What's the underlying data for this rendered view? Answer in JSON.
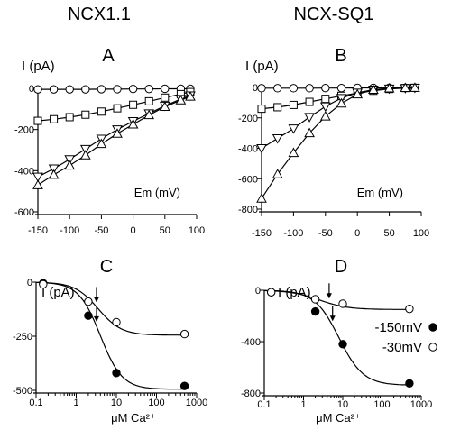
{
  "column_titles": [
    "NCX1.1",
    "NCX-SQ1"
  ],
  "chart_data": [
    {
      "panel": "A",
      "type": "line",
      "ylabel": "I (pA)",
      "xlabel": "Em (mV)",
      "xlim": [
        -150,
        100
      ],
      "ylim": [
        -600,
        0
      ],
      "xticks": [
        "-150",
        "-100",
        "-50",
        "0",
        "50",
        "100"
      ],
      "xtick_values": [
        -150,
        -100,
        -50,
        0,
        50,
        100
      ],
      "yticks": [
        "0",
        "-200",
        "-400",
        "-600"
      ],
      "ytick_values": [
        0,
        -200,
        -400,
        -600
      ],
      "series": [
        {
          "marker": "circle",
          "x": [
            -150,
            -125,
            -100,
            -75,
            -50,
            -25,
            0,
            25,
            50,
            75,
            90
          ],
          "y": [
            -5,
            -5,
            -5,
            -5,
            -4,
            -4,
            -3,
            -3,
            -2,
            -2,
            -2
          ]
        },
        {
          "marker": "square",
          "x": [
            -150,
            -125,
            -100,
            -75,
            -50,
            -25,
            0,
            25,
            50,
            75,
            90
          ],
          "y": [
            -158,
            -150,
            -140,
            -128,
            -113,
            -97,
            -80,
            -63,
            -45,
            -28,
            -18
          ]
        },
        {
          "marker": "triangle-down",
          "x": [
            -150,
            -125,
            -100,
            -75,
            -50,
            -25,
            0,
            25,
            50,
            75,
            90
          ],
          "y": [
            -430,
            -390,
            -345,
            -295,
            -245,
            -200,
            -160,
            -122,
            -85,
            -52,
            -35
          ]
        },
        {
          "marker": "triangle-up",
          "x": [
            -150,
            -125,
            -100,
            -75,
            -50,
            -25,
            0,
            25,
            50,
            75,
            90
          ],
          "y": [
            -470,
            -420,
            -375,
            -325,
            -270,
            -220,
            -175,
            -130,
            -90,
            -58,
            -40
          ]
        }
      ]
    },
    {
      "panel": "B",
      "type": "line",
      "ylabel": "I (pA)",
      "xlabel": "Em (mV)",
      "xlim": [
        -150,
        100
      ],
      "ylim": [
        -800,
        0
      ],
      "xticks": [
        "-150",
        "-100",
        "-50",
        "0",
        "50",
        "100"
      ],
      "xtick_values": [
        -150,
        -100,
        -50,
        0,
        50,
        100
      ],
      "yticks": [
        "0",
        "-200",
        "-400",
        "-600",
        "-800"
      ],
      "ytick_values": [
        0,
        -200,
        -400,
        -600,
        -800
      ],
      "series": [
        {
          "marker": "circle",
          "x": [
            -150,
            -125,
            -100,
            -75,
            -50,
            -25,
            0,
            25,
            50,
            75,
            90
          ],
          "y": [
            -5,
            -5,
            -5,
            -5,
            -4,
            -4,
            -3,
            -3,
            -2,
            -2,
            -2
          ]
        },
        {
          "marker": "square",
          "x": [
            -150,
            -125,
            -100,
            -75,
            -50,
            -25,
            0,
            25,
            50,
            75,
            90
          ],
          "y": [
            -140,
            -130,
            -115,
            -95,
            -75,
            -55,
            -38,
            -22,
            -10,
            -4,
            -2
          ]
        },
        {
          "marker": "triangle-down",
          "x": [
            -150,
            -125,
            -100,
            -75,
            -50,
            -25,
            0,
            25,
            50,
            75,
            90
          ],
          "y": [
            -400,
            -335,
            -270,
            -195,
            -125,
            -70,
            -35,
            -15,
            -8,
            -5,
            -3
          ]
        },
        {
          "marker": "triangle-up",
          "x": [
            -150,
            -125,
            -100,
            -75,
            -50,
            -25,
            0,
            25,
            50,
            75,
            90
          ],
          "y": [
            -730,
            -570,
            -430,
            -300,
            -190,
            -105,
            -45,
            -15,
            -6,
            -3,
            -2
          ]
        }
      ]
    },
    {
      "panel": "C",
      "type": "scatter",
      "ylabel": "I (pA)",
      "xlabel": "μM Ca²⁺",
      "xscale": "log",
      "xlim": [
        0.1,
        1000
      ],
      "ylim": [
        -500,
        0
      ],
      "xticks": [
        "0.1",
        "1",
        "10",
        "100",
        "1000"
      ],
      "xtick_values": [
        0.1,
        1,
        10,
        100,
        1000
      ],
      "yticks": [
        "-500",
        "-250",
        "0"
      ],
      "ytick_values": [
        -500,
        -250,
        0
      ],
      "kd_arrows_x": [
        3.2,
        3.2
      ],
      "series": [
        {
          "marker": "filled-circle",
          "x": [
            0.15,
            2,
            10,
            500
          ],
          "y": [
            -5,
            -155,
            -420,
            -480
          ],
          "fit": {
            "max": -495,
            "kd": 4,
            "n": 1.6
          }
        },
        {
          "marker": "open-circle",
          "x": [
            0.15,
            2,
            10,
            500
          ],
          "y": [
            -10,
            -90,
            -185,
            -240
          ],
          "fit": {
            "max": -245,
            "kd": 3.5,
            "n": 1.5
          }
        }
      ]
    },
    {
      "panel": "D",
      "type": "scatter",
      "ylabel": "I (pA)",
      "xlabel": "μM Ca²⁺",
      "xscale": "log",
      "xlim": [
        0.1,
        1000
      ],
      "ylim": [
        -800,
        0
      ],
      "xticks": [
        "0.1",
        "1",
        "10",
        "100",
        "1000"
      ],
      "xtick_values": [
        0.1,
        1,
        10,
        100,
        1000
      ],
      "yticks": [
        "-800",
        "-400",
        "0"
      ],
      "ytick_values": [
        -800,
        -400,
        0
      ],
      "kd_arrows_x": [
        5.5,
        4.5
      ],
      "legend": [
        {
          "label": "-150mV",
          "marker": "filled-circle"
        },
        {
          "label": "-30mV",
          "marker": "open-circle"
        }
      ],
      "series": [
        {
          "marker": "filled-circle",
          "x": [
            0.15,
            2,
            10,
            500
          ],
          "y": [
            -15,
            -165,
            -420,
            -725
          ],
          "fit": {
            "max": -740,
            "kd": 8,
            "n": 1.4
          }
        },
        {
          "marker": "open-circle",
          "x": [
            0.15,
            2,
            10,
            500
          ],
          "y": [
            -15,
            -70,
            -105,
            -145
          ],
          "fit": {
            "max": -150,
            "kd": 2.5,
            "n": 1.2
          }
        }
      ]
    }
  ]
}
